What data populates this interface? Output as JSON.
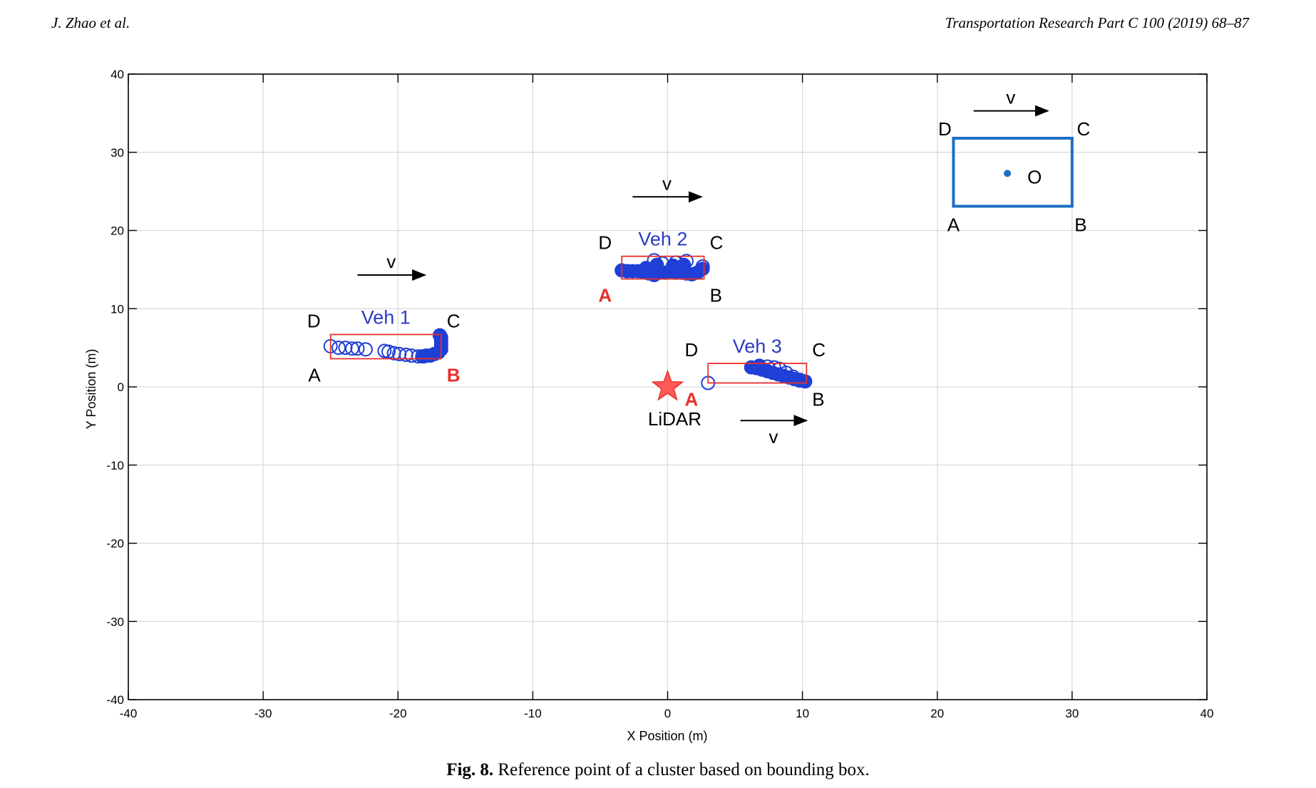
{
  "header": {
    "left": "J. Zhao et al.",
    "right": "Transportation Research Part C 100 (2019) 68–87"
  },
  "caption": {
    "label": "Fig. 8.",
    "text": "Reference point of a cluster based on bounding box."
  },
  "colors": {
    "point_blue": "#1f3fd6",
    "box_red": "#e8302b",
    "schematic_blue": "#1f6fc4",
    "grid": "#d9d9d9"
  },
  "chart_data": {
    "type": "scatter",
    "xlabel": "X Position (m)",
    "ylabel": "Y Position (m)",
    "xlim": [
      -40,
      40
    ],
    "ylim": [
      -40,
      40
    ],
    "xticks": [
      -40,
      -30,
      -20,
      -10,
      0,
      10,
      20,
      30,
      40
    ],
    "yticks": [
      -40,
      -30,
      -20,
      -10,
      0,
      10,
      20,
      30,
      40
    ],
    "grid": true,
    "lidar": {
      "label": "LiDAR",
      "x": 0,
      "y": 0
    },
    "vehicles": [
      {
        "name": "Veh 1",
        "box": {
          "x0": -25.0,
          "x1": -16.8,
          "y0": 3.6,
          "y1": 6.7
        },
        "corner_labels": [
          "A",
          "B",
          "C",
          "D"
        ],
        "reference_point": "B",
        "direction_label": "v",
        "arrow": {
          "x0": -23.0,
          "x1": -18.0,
          "y": 14.3
        },
        "open_points": [
          [
            -25.0,
            5.2
          ],
          [
            -24.4,
            5.0
          ],
          [
            -23.9,
            5.0
          ],
          [
            -23.4,
            4.9
          ],
          [
            -23.0,
            4.9
          ],
          [
            -22.4,
            4.8
          ],
          [
            -21.0,
            4.6
          ],
          [
            -20.7,
            4.5
          ],
          [
            -20.3,
            4.3
          ],
          [
            -19.9,
            4.2
          ],
          [
            -19.4,
            4.1
          ],
          [
            -19.0,
            4.0
          ],
          [
            -18.5,
            3.9
          ],
          [
            -18.1,
            3.9
          ]
        ],
        "filled_points": [
          [
            -18.2,
            3.9
          ],
          [
            -17.9,
            4.0
          ],
          [
            -17.6,
            4.0
          ],
          [
            -17.3,
            4.2
          ],
          [
            -17.0,
            4.4
          ],
          [
            -16.8,
            4.8
          ],
          [
            -16.8,
            5.3
          ],
          [
            -16.8,
            5.8
          ],
          [
            -16.8,
            6.3
          ],
          [
            -16.9,
            6.6
          ]
        ]
      },
      {
        "name": "Veh 2",
        "box": {
          "x0": -3.4,
          "x1": 2.7,
          "y0": 13.8,
          "y1": 16.7
        },
        "corner_labels": [
          "A",
          "B",
          "C",
          "D"
        ],
        "reference_point": "A",
        "direction_label": "v",
        "arrow": {
          "x0": -2.6,
          "x1": 2.5,
          "y": 24.3
        },
        "open_points": [
          [
            -1.0,
            16.2
          ],
          [
            1.4,
            16.1
          ],
          [
            2.6,
            15.4
          ],
          [
            -0.4,
            15.8
          ],
          [
            0.6,
            15.9
          ]
        ],
        "filled_points": [
          [
            -3.4,
            14.9
          ],
          [
            -3.0,
            14.8
          ],
          [
            -2.6,
            14.8
          ],
          [
            -2.2,
            14.8
          ],
          [
            -1.8,
            14.7
          ],
          [
            -1.4,
            14.5
          ],
          [
            -1.0,
            14.3
          ],
          [
            -0.6,
            14.6
          ],
          [
            -0.2,
            14.6
          ],
          [
            0.2,
            14.8
          ],
          [
            0.6,
            14.6
          ],
          [
            1.0,
            14.6
          ],
          [
            1.4,
            14.5
          ],
          [
            1.8,
            14.4
          ],
          [
            2.2,
            14.6
          ],
          [
            -0.8,
            15.6
          ],
          [
            0.4,
            15.5
          ],
          [
            1.2,
            15.6
          ],
          [
            -1.6,
            15.2
          ],
          [
            2.6,
            15.1
          ]
        ]
      },
      {
        "name": "Veh 3",
        "box": {
          "x0": 3.0,
          "x1": 10.3,
          "y0": 0.5,
          "y1": 3.0
        },
        "corner_labels": [
          "A",
          "B",
          "C",
          "D"
        ],
        "reference_point": "A",
        "direction_label": "v",
        "arrow": {
          "x0": 5.4,
          "x1": 10.3,
          "y": -4.3
        },
        "open_points": [
          [
            3.0,
            0.5
          ],
          [
            7.4,
            2.6
          ],
          [
            7.9,
            2.5
          ],
          [
            8.3,
            2.3
          ],
          [
            8.8,
            1.8
          ],
          [
            9.3,
            1.3
          ],
          [
            9.8,
            0.9
          ]
        ],
        "filled_points": [
          [
            6.2,
            2.5
          ],
          [
            6.6,
            2.4
          ],
          [
            7.0,
            2.2
          ],
          [
            7.4,
            2.0
          ],
          [
            7.8,
            1.8
          ],
          [
            8.2,
            1.6
          ],
          [
            8.6,
            1.4
          ],
          [
            9.0,
            1.2
          ],
          [
            9.4,
            1.0
          ],
          [
            9.8,
            0.8
          ],
          [
            10.2,
            0.7
          ],
          [
            6.8,
            2.7
          ]
        ]
      }
    ],
    "schematic": {
      "box": {
        "x0": 21.2,
        "x1": 30.0,
        "y0": 23.1,
        "y1": 31.8
      },
      "corner_labels": [
        "A",
        "B",
        "C",
        "D"
      ],
      "center_label": "O",
      "center_point": [
        25.2,
        27.3
      ],
      "direction_label": "v",
      "arrow": {
        "x0": 22.7,
        "x1": 28.2,
        "y": 35.3
      }
    }
  }
}
